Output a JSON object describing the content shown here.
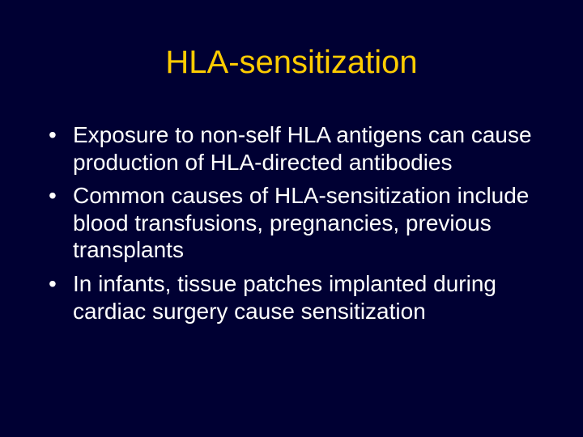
{
  "slide": {
    "title": "HLA-sensitization",
    "bullets": [
      "Exposure to non-self HLA antigens can cause production of HLA-directed antibodies",
      "Common causes of HLA-sensitization include blood transfusions, pregnancies, previous transplants",
      "In infants, tissue patches implanted during cardiac surgery cause sensitization"
    ],
    "styling": {
      "background_color": "#000033",
      "title_color": "#ffcc00",
      "title_fontsize": 40,
      "body_color": "#ffffff",
      "body_fontsize": 28,
      "font_family": "Arial"
    }
  }
}
